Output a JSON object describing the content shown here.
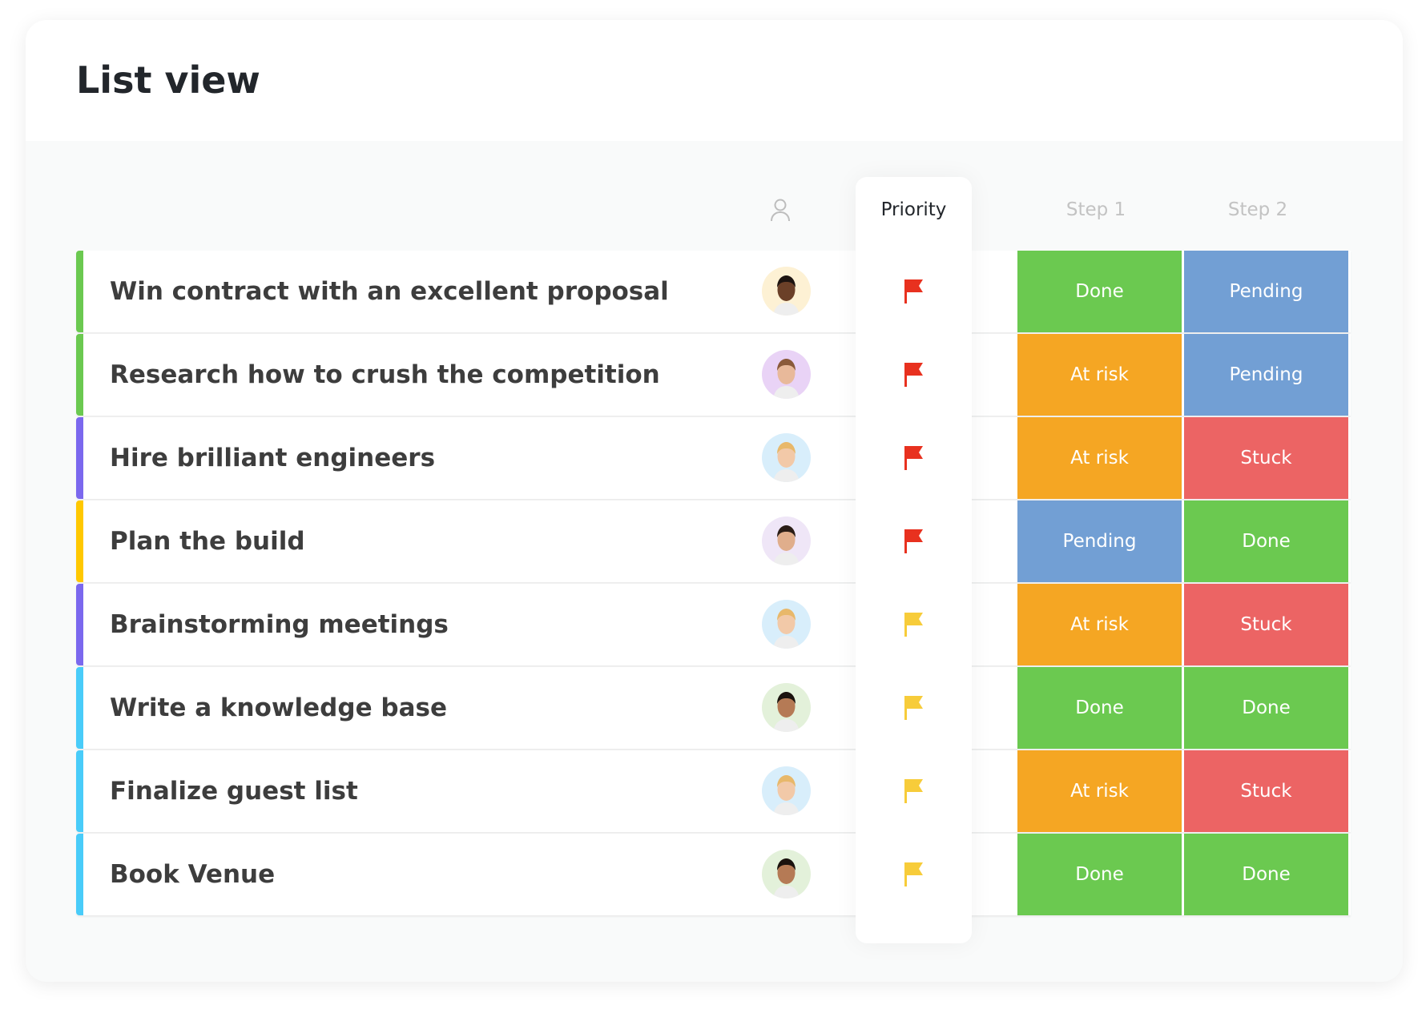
{
  "title": "List view",
  "columns": {
    "assignee_icon": "person-icon",
    "priority": "Priority",
    "step1": "Step 1",
    "step2": "Step 2"
  },
  "status_colors": {
    "Done": "#6bc950",
    "Pending": "#729fd4",
    "At risk": "#f5a623",
    "Stuck": "#ec6464"
  },
  "priority_colors": {
    "urgent": "#e8311f",
    "high": "#f7cc3a"
  },
  "rows": [
    {
      "task": "Win contract with an excellent proposal",
      "color": "#6bc950",
      "avatar_bg": "#fdf1d4",
      "skin": "#6b4028",
      "hair": "#1d1410",
      "priority": "urgent",
      "step1": "Done",
      "step2": "Pending"
    },
    {
      "task": "Research how to crush the competition",
      "color": "#6bc950",
      "avatar_bg": "#e9d3f6",
      "skin": "#e8b99a",
      "hair": "#8a5a3a",
      "priority": "urgent",
      "step1": "At risk",
      "step2": "Pending"
    },
    {
      "task": "Hire brilliant engineers",
      "color": "#7b68ee",
      "avatar_bg": "#d8eefb",
      "skin": "#f2c9a8",
      "hair": "#e8b86a",
      "priority": "urgent",
      "step1": "At risk",
      "step2": "Stuck"
    },
    {
      "task": "Plan the build",
      "color": "#ffc800",
      "avatar_bg": "#efe6f7",
      "skin": "#e0ae8c",
      "hair": "#2a1d16",
      "priority": "urgent",
      "step1": "Pending",
      "step2": "Done"
    },
    {
      "task": "Brainstorming meetings",
      "color": "#7b68ee",
      "avatar_bg": "#d8eefb",
      "skin": "#f2c9a8",
      "hair": "#e8b86a",
      "priority": "high",
      "step1": "At risk",
      "step2": "Stuck"
    },
    {
      "task": "Write a knowledge base",
      "color": "#49ccf9",
      "avatar_bg": "#e3f1da",
      "skin": "#b57a55",
      "hair": "#1a120e",
      "priority": "high",
      "step1": "Done",
      "step2": "Done"
    },
    {
      "task": "Finalize guest list",
      "color": "#49ccf9",
      "avatar_bg": "#d8eefb",
      "skin": "#f2c9a8",
      "hair": "#e8b86a",
      "priority": "high",
      "step1": "At risk",
      "step2": "Stuck"
    },
    {
      "task": "Book Venue",
      "color": "#49ccf9",
      "avatar_bg": "#e3f1da",
      "skin": "#b57a55",
      "hair": "#1a120e",
      "priority": "high",
      "step1": "Done",
      "step2": "Done"
    }
  ]
}
